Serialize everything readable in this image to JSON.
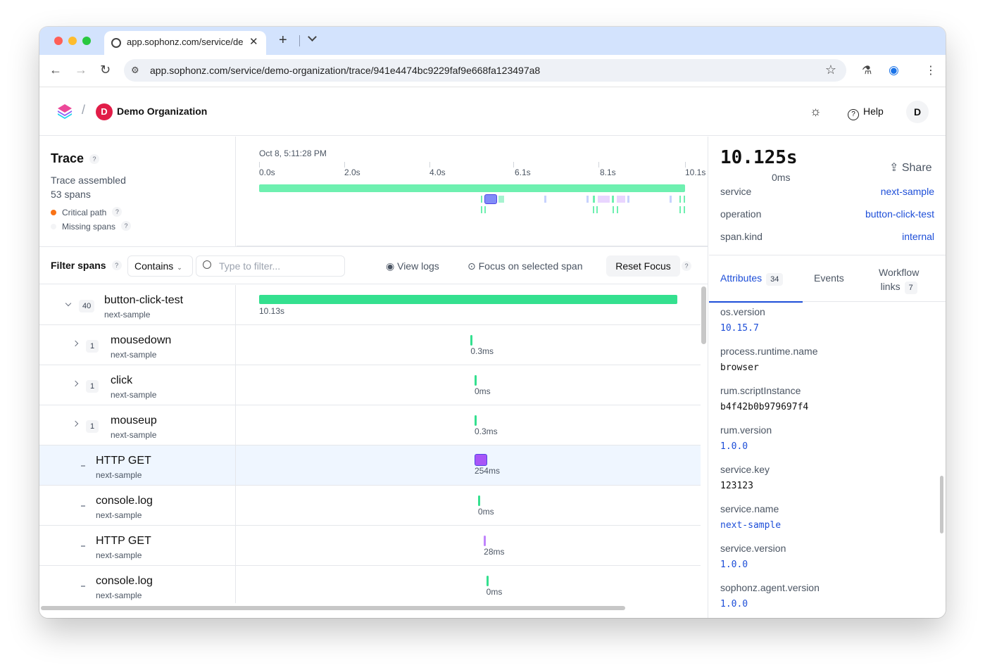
{
  "browser": {
    "tab_title": "app.sophonz.com/service/demo-organization/trace/941e4474bc9229faf9e668fa123497a8",
    "url": "app.sophonz.com/service/demo-organization/trace/941e4474bc9229faf9e668fa123497a8"
  },
  "header": {
    "org_initial": "D",
    "org_name": "Demo Organization",
    "help_label": "Help",
    "user_initial": "D"
  },
  "summary": {
    "title": "Trace",
    "status": "Trace assembled",
    "span_count": "53 spans",
    "legend_critical": "Critical path",
    "legend_missing": "Missing spans",
    "critical_color": "#f97316"
  },
  "minimap": {
    "start_time": "Oct 8, 5:11:28 PM",
    "ticks": [
      "0.0s",
      "2.0s",
      "4.0s",
      "6.1s",
      "8.1s",
      "10.1s"
    ]
  },
  "filter": {
    "label": "Filter spans",
    "mode": "Contains",
    "placeholder": "Type to filter...",
    "view_logs": "View logs",
    "focus_selected": "Focus on selected span",
    "reset_focus": "Reset Focus"
  },
  "spans": [
    {
      "name": "button-click-test",
      "service": "next-sample",
      "count": "40",
      "duration": "10.13s",
      "start_ms": 0,
      "duration_ms": 10125,
      "color": "#34e08f",
      "depth": 0,
      "expandable": true,
      "expanded": true,
      "selected": false
    },
    {
      "name": "mousedown",
      "service": "next-sample",
      "count": "1",
      "duration": "0.3ms",
      "start_ms": 5120,
      "duration_ms": 0.3,
      "color": "#34e08f",
      "depth": 1,
      "expandable": true,
      "expanded": false,
      "selected": false
    },
    {
      "name": "click",
      "service": "next-sample",
      "count": "1",
      "duration": "0ms",
      "start_ms": 5215,
      "duration_ms": 0,
      "color": "#34e08f",
      "depth": 1,
      "expandable": true,
      "expanded": false,
      "selected": false
    },
    {
      "name": "mouseup",
      "service": "next-sample",
      "count": "1",
      "duration": "0.3ms",
      "start_ms": 5215,
      "duration_ms": 0.3,
      "color": "#34e08f",
      "depth": 1,
      "expandable": true,
      "expanded": false,
      "selected": false
    },
    {
      "name": "HTTP GET",
      "service": "next-sample",
      "count": "",
      "duration": "254ms",
      "start_ms": 5215,
      "duration_ms": 254,
      "color": "#a855f7",
      "depth": 1,
      "expandable": false,
      "expanded": false,
      "selected": true
    },
    {
      "name": "console.log",
      "service": "next-sample",
      "count": "",
      "duration": "0ms",
      "start_ms": 5300,
      "duration_ms": 0,
      "color": "#34e08f",
      "depth": 1,
      "expandable": false,
      "expanded": false,
      "selected": false
    },
    {
      "name": "HTTP GET",
      "service": "next-sample",
      "count": "",
      "duration": "28ms",
      "start_ms": 5440,
      "duration_ms": 28,
      "color": "#c084fc",
      "depth": 1,
      "expandable": false,
      "expanded": false,
      "selected": false
    },
    {
      "name": "console.log",
      "service": "next-sample",
      "count": "",
      "duration": "0ms",
      "start_ms": 5500,
      "duration_ms": 0,
      "color": "#34e08f",
      "depth": 1,
      "expandable": false,
      "expanded": false,
      "selected": false
    }
  ],
  "detail": {
    "duration": "10.125s",
    "offset": "0ms",
    "share_label": "Share",
    "fields": [
      {
        "key": "service",
        "value": "next-sample"
      },
      {
        "key": "operation",
        "value": "button-click-test"
      },
      {
        "key": "span.kind",
        "value": "internal"
      }
    ],
    "tabs": [
      {
        "label": "Attributes",
        "count": "34"
      },
      {
        "label": "Events",
        "count": ""
      },
      {
        "label": "Workflow",
        "label2": "links",
        "count": "7"
      }
    ],
    "attributes": [
      {
        "key": "os.version",
        "value": "10.15.7",
        "numeric": true
      },
      {
        "key": "process.runtime.name",
        "value": "browser",
        "numeric": false
      },
      {
        "key": "rum.scriptInstance",
        "value": "b4f42b0b979697f4",
        "numeric": false
      },
      {
        "key": "rum.version",
        "value": "1.0.0",
        "numeric": true
      },
      {
        "key": "service.key",
        "value": "123123",
        "numeric": false
      },
      {
        "key": "service.name",
        "value": "next-sample",
        "numeric": true
      },
      {
        "key": "service.version",
        "value": "1.0.0",
        "numeric": true
      },
      {
        "key": "sophonz.agent.version",
        "value": "1.0.0",
        "numeric": true
      }
    ]
  }
}
